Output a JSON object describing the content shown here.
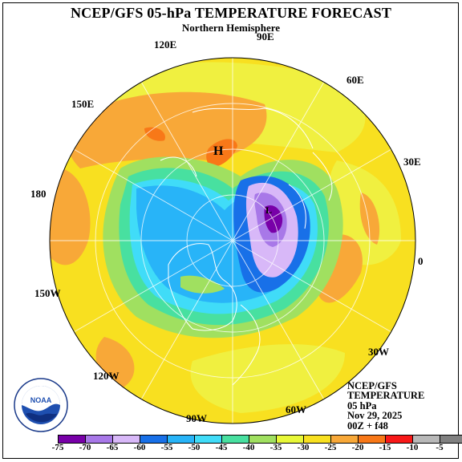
{
  "title": "NCEP/GFS 05-hPa TEMPERATURE FORECAST",
  "subtitle": "Northern Hemisphere",
  "longitude_labels": {
    "e90": "90E",
    "e120": "120E",
    "e60": "60E",
    "e150": "150E",
    "e30": "30E",
    "lon180": "180",
    "lon0": "0",
    "w150": "150W",
    "w30": "30W",
    "w120": "120W",
    "w90": "90W",
    "w60": "60W"
  },
  "high_marker": "H",
  "low_marker": "L",
  "info": {
    "line1": "NCEP/GFS",
    "line2": "TEMPERATURE",
    "line3": "05 hPa",
    "line4": "Nov 29, 2025",
    "line5": "00Z + f48"
  },
  "logo": {
    "name": "NOAA",
    "text": "NOAA"
  },
  "legend": {
    "ticks": [
      "-75",
      "-70",
      "-65",
      "-60",
      "-55",
      "-50",
      "-45",
      "-40",
      "-35",
      "-30",
      "-25",
      "-20",
      "-15",
      "-10",
      "-5"
    ],
    "colors": [
      "#7800a8",
      "#a878e8",
      "#d8b8f8",
      "#1870e8",
      "#28b4f8",
      "#40dcf8",
      "#48e0a0",
      "#a0e060",
      "#e8f838",
      "#f8e020",
      "#f8a838",
      "#f87818",
      "#f81818",
      "#b8b8b8",
      "#808080"
    ]
  }
}
